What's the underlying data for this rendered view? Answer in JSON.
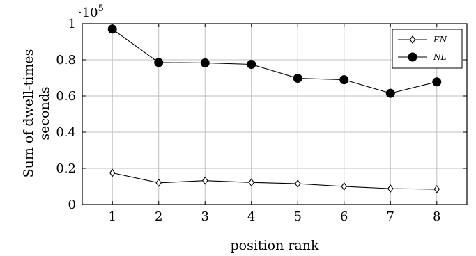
{
  "chart_data": {
    "type": "line",
    "title": "",
    "xlabel": "position rank",
    "ylabel_lines": [
      "Sum of dwell-times",
      "seconds"
    ],
    "y_multiplier": "·10",
    "y_multiplier_exponent": "5",
    "x": [
      1,
      2,
      3,
      4,
      5,
      6,
      7,
      8
    ],
    "xlim": [
      0.35,
      8.65
    ],
    "ylim": [
      0,
      1
    ],
    "xticks": [
      "1",
      "2",
      "3",
      "4",
      "5",
      "6",
      "7",
      "8"
    ],
    "yticks": [
      "0",
      "0.2",
      "0.4",
      "0.6",
      "0.8",
      "1"
    ],
    "ytick_values": [
      0,
      0.2,
      0.4,
      0.6,
      0.8,
      1
    ],
    "grid": true,
    "legend_position": "top-right",
    "series": [
      {
        "name": "EN",
        "marker": "diamond-open",
        "color": "#000000",
        "values": [
          0.175,
          0.12,
          0.132,
          0.122,
          0.115,
          0.1,
          0.088,
          0.085
        ]
      },
      {
        "name": "NL",
        "marker": "circle-filled",
        "color": "#000000",
        "values": [
          0.97,
          0.785,
          0.783,
          0.775,
          0.698,
          0.69,
          0.615,
          0.678
        ]
      }
    ]
  }
}
